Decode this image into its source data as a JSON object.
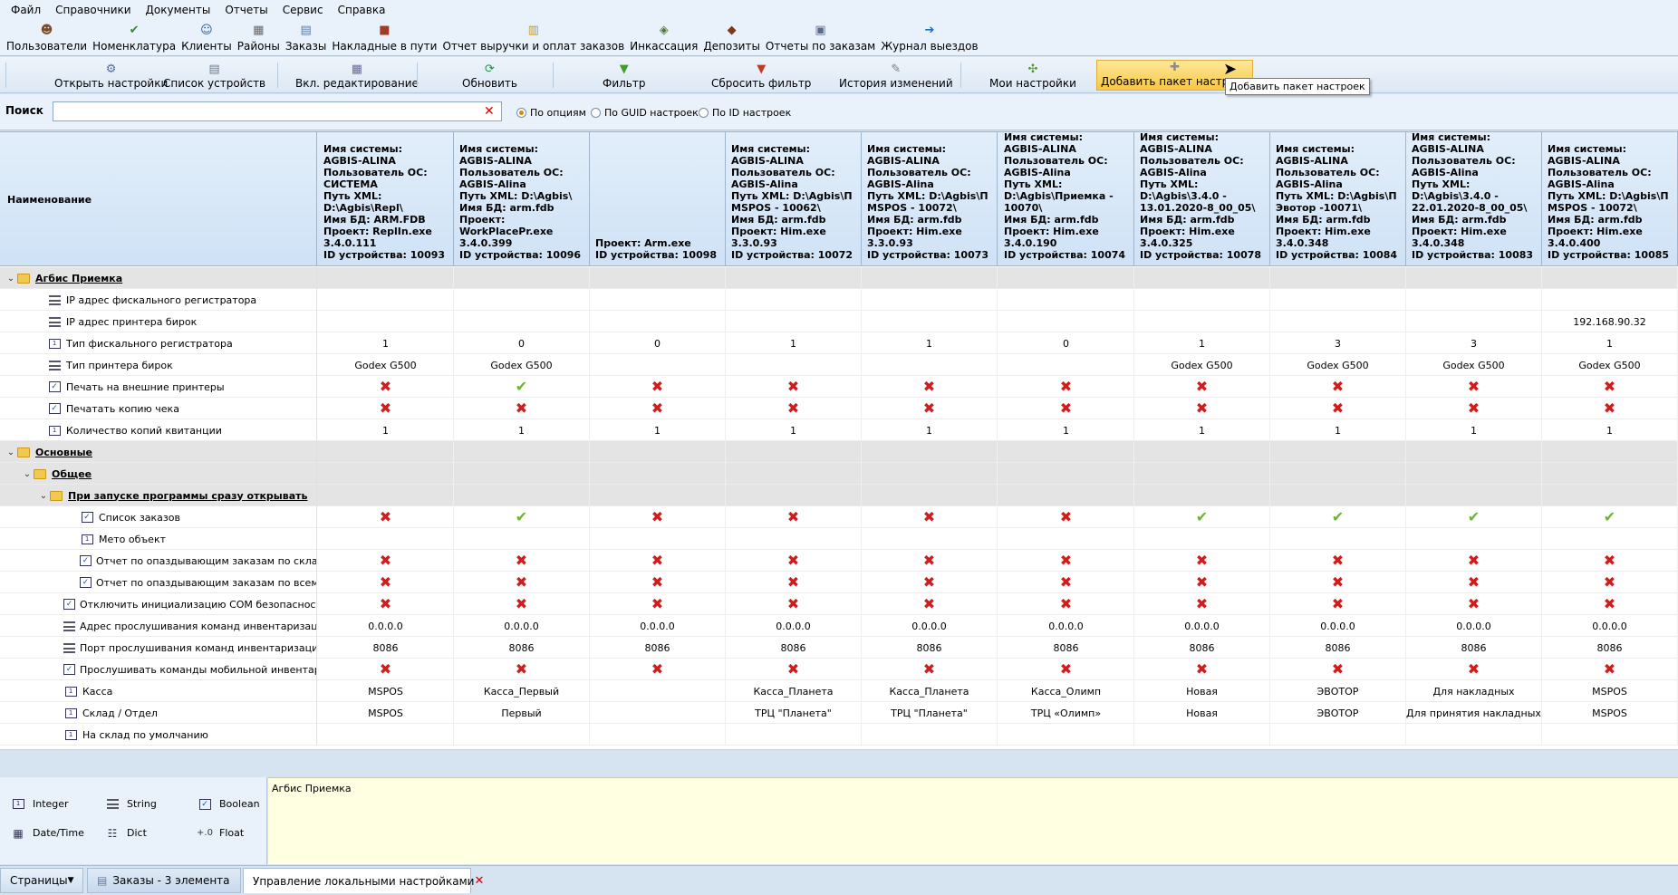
{
  "menu": [
    "Файл",
    "Справочники",
    "Документы",
    "Отчеты",
    "Сервис",
    "Справка"
  ],
  "quickbar": [
    {
      "label": "Пользователи",
      "icon": "users-icon"
    },
    {
      "label": "Номенклатура",
      "icon": "nomenclature-icon"
    },
    {
      "label": "Клиенты",
      "icon": "clients-icon"
    },
    {
      "label": "Районы",
      "icon": "districts-icon"
    },
    {
      "label": "Заказы",
      "icon": "orders-icon"
    },
    {
      "label": "Накладные в пути",
      "icon": "waybills-icon"
    },
    {
      "label": "Отчет выручки и оплат заказов",
      "icon": "revenue-report-icon"
    },
    {
      "label": "Инкассация",
      "icon": "collection-icon"
    },
    {
      "label": "Депозиты",
      "icon": "deposits-icon"
    },
    {
      "label": "Отчеты по заказам",
      "icon": "order-reports-icon"
    },
    {
      "label": "Журнал выездов",
      "icon": "trips-log-icon"
    }
  ],
  "toolbar": [
    {
      "label": "Открыть настройки",
      "icon": "open-settings-icon"
    },
    {
      "label": "Список устройств",
      "icon": "device-list-icon"
    },
    {
      "label": "Вкл. редактирование",
      "icon": "edit-mode-icon"
    },
    {
      "label": "Обновить",
      "icon": "refresh-icon"
    },
    {
      "label": "Фильтр",
      "icon": "filter-icon"
    },
    {
      "label": "Сбросить фильтр",
      "icon": "reset-filter-icon"
    },
    {
      "label": "История изменений",
      "icon": "history-icon"
    },
    {
      "label": "Мои настройки",
      "icon": "my-settings-icon"
    },
    {
      "label": "Добавить пакет настроек",
      "icon": "add-package-icon"
    }
  ],
  "tooltip": "Добавить пакет настроек",
  "search": {
    "label": "Поиск",
    "value": "",
    "placeholder": ""
  },
  "search_modes": [
    {
      "label": "По опциям",
      "selected": true
    },
    {
      "label": "По GUID настроек",
      "selected": false
    },
    {
      "label": "По ID настроек",
      "selected": false
    }
  ],
  "grid": {
    "name_header": "Наименование",
    "columns": [
      "Имя системы:\nAGBIS-ALINA\nПользователь ОС:\nСИСТЕМА\nПуть XML:\nD:\\Agbis\\Repl\\\nИмя БД: ARM.FDB\nПроект: ReplIn.exe\n3.4.0.111\nID устройства: 10093",
      "Имя системы:\nAGBIS-ALINA\nПользователь ОС:\nAGBIS-Alina\nПуть XML: D:\\Agbis\\\nИмя БД: arm.fdb\nПроект:\nWorkPlacePr.exe\n3.4.0.399\nID устройства: 10096",
      "Проект: Arm.exe\nID устройства: 10098",
      "Имя системы:\nAGBIS-ALINA\nПользователь ОС:\nAGBIS-Alina\nПуть XML: D:\\Agbis\\П\nMSPOS - 10062\\\nИмя БД: arm.fdb\nПроект: Him.exe\n3.3.0.93\nID устройства: 10072",
      "Имя системы:\nAGBIS-ALINA\nПользователь ОС:\nAGBIS-Alina\nПуть XML: D:\\Agbis\\П\nMSPOS - 10072\\\nИмя БД: arm.fdb\nПроект: Him.exe\n3.3.0.93\nID устройства: 10073",
      "Имя системы:\nAGBIS-ALINA\nПользователь ОС:\nAGBIS-Alina\nПуть XML:\nD:\\Agbis\\Приемка -\n10070\\\nИмя БД: arm.fdb\nПроект: Him.exe\n3.4.0.190\nID устройства: 10074",
      "Имя системы:\nAGBIS-ALINA\nПользователь ОС:\nAGBIS-Alina\nПуть XML:\nD:\\Agbis\\3.4.0 -\n13.01.2020-8_00_05\\\nИмя БД: arm.fdb\nПроект: Him.exe\n3.4.0.325\nID устройства: 10078",
      "Имя системы:\nAGBIS-ALINA\nПользователь ОС:\nAGBIS-Alina\nПуть XML: D:\\Agbis\\П\nЭвотор -10071\\\nИмя БД: arm.fdb\nПроект: Him.exe\n3.4.0.348\nID устройства: 10084",
      "Имя системы:\nAGBIS-ALINA\nПользователь ОС:\nAGBIS-Alina\nПуть XML:\nD:\\Agbis\\3.4.0 -\n22.01.2020-8_00_05\\\nИмя БД: arm.fdb\nПроект: Him.exe\n3.4.0.348\nID устройства: 10083",
      "Имя системы:\nAGBIS-ALINA\nПользователь ОС:\nAGBIS-Alina\nПуть XML: D:\\Agbis\\П\nMSPOS - 10072\\\nИмя БД: arm.fdb\nПроект: Him.exe\n3.4.0.400\nID устройства: 10085"
    ],
    "rows": [
      {
        "name": "Агбис Приемка",
        "type": "group",
        "level": 0,
        "values": []
      },
      {
        "name": "IP адрес фискального регистратора",
        "type": "string",
        "level": 1,
        "values": [
          "",
          "",
          "",
          "",
          "",
          "",
          "",
          "",
          "",
          ""
        ]
      },
      {
        "name": "IP адрес принтера бирок",
        "type": "string",
        "level": 1,
        "values": [
          "",
          "",
          "",
          "",
          "",
          "",
          "",
          "",
          "",
          "192.168.90.32"
        ]
      },
      {
        "name": "Тип фискального регистратора",
        "type": "int",
        "level": 1,
        "values": [
          "1",
          "0",
          "0",
          "1",
          "1",
          "0",
          "1",
          "3",
          "3",
          "1"
        ]
      },
      {
        "name": "Тип принтера бирок",
        "type": "string",
        "level": 1,
        "values": [
          "Godex G500",
          "Godex G500",
          "",
          "",
          "",
          "",
          "Godex G500",
          "Godex G500",
          "Godex G500",
          "Godex G500"
        ]
      },
      {
        "name": "Печать на внешние принтеры",
        "type": "bool",
        "level": 1,
        "values": [
          "x",
          "v",
          "x",
          "x",
          "x",
          "x",
          "x",
          "x",
          "x",
          "x"
        ]
      },
      {
        "name": "Печатать копию чека",
        "type": "bool",
        "level": 1,
        "values": [
          "x",
          "x",
          "x",
          "x",
          "x",
          "x",
          "x",
          "x",
          "x",
          "x"
        ]
      },
      {
        "name": "Количество копий квитанции",
        "type": "int",
        "level": 1,
        "values": [
          "1",
          "1",
          "1",
          "1",
          "1",
          "1",
          "1",
          "1",
          "1",
          "1"
        ]
      },
      {
        "name": "Основные",
        "type": "group",
        "level": 0,
        "values": []
      },
      {
        "name": "Общее",
        "type": "group",
        "level": 1,
        "values": []
      },
      {
        "name": "При запуске программы сразу открывать",
        "type": "group",
        "level": 2,
        "values": []
      },
      {
        "name": "Список заказов",
        "type": "bool",
        "level": 3,
        "values": [
          "x",
          "v",
          "x",
          "x",
          "x",
          "x",
          "v",
          "v",
          "v",
          "v"
        ]
      },
      {
        "name": "Мето объект",
        "type": "int",
        "level": 3,
        "values": [
          "",
          "",
          "",
          "",
          "",
          "",
          "",
          "",
          "",
          ""
        ]
      },
      {
        "name": "Отчет по опаздывающим заказам по складу",
        "type": "bool",
        "level": 3,
        "values": [
          "x",
          "x",
          "x",
          "x",
          "x",
          "x",
          "x",
          "x",
          "x",
          "x"
        ]
      },
      {
        "name": "Отчет по опаздывающим заказам по всем скл...",
        "type": "bool",
        "level": 3,
        "values": [
          "x",
          "x",
          "x",
          "x",
          "x",
          "x",
          "x",
          "x",
          "x",
          "x"
        ]
      },
      {
        "name": "Отключить инициализацию COM безопасности",
        "type": "bool",
        "level": 2,
        "values": [
          "x",
          "x",
          "x",
          "x",
          "x",
          "x",
          "x",
          "x",
          "x",
          "x"
        ]
      },
      {
        "name": "Адрес прослушивания команд инвентаризации",
        "type": "string",
        "level": 2,
        "values": [
          "0.0.0.0",
          "0.0.0.0",
          "0.0.0.0",
          "0.0.0.0",
          "0.0.0.0",
          "0.0.0.0",
          "0.0.0.0",
          "0.0.0.0",
          "0.0.0.0",
          "0.0.0.0"
        ]
      },
      {
        "name": "Порт прослушивания команд инвентаризации",
        "type": "string",
        "level": 2,
        "values": [
          "8086",
          "8086",
          "8086",
          "8086",
          "8086",
          "8086",
          "8086",
          "8086",
          "8086",
          "8086"
        ]
      },
      {
        "name": "Прослушивать команды мобильной инвентаризации",
        "type": "bool",
        "level": 2,
        "values": [
          "x",
          "x",
          "x",
          "x",
          "x",
          "x",
          "x",
          "x",
          "x",
          "x"
        ]
      },
      {
        "name": "Касса",
        "type": "int",
        "level": 2,
        "values": [
          "MSPOS",
          "Касса_Первый",
          "",
          "Касса_Планета",
          "Касса_Планета",
          "Касса_Олимп",
          "Новая",
          "ЭВОТОР",
          "Для накладных",
          "MSPOS"
        ]
      },
      {
        "name": "Склад / Отдел",
        "type": "int",
        "level": 2,
        "values": [
          "MSPOS",
          "Первый",
          "",
          "ТРЦ \"Планета\"",
          "ТРЦ \"Планета\"",
          "ТРЦ «Олимп»",
          "Новая",
          "ЭВОТОР",
          "Для принятия накладных",
          "MSPOS"
        ]
      },
      {
        "name": "На склад по умолчанию",
        "type": "int",
        "level": 2,
        "values": [
          "",
          "",
          "",
          "",
          "",
          "",
          "",
          "",
          "",
          ""
        ]
      }
    ]
  },
  "legend": [
    {
      "label": "Integer",
      "icon": "integer-type-icon"
    },
    {
      "label": "String",
      "icon": "string-type-icon"
    },
    {
      "label": "Boolean",
      "icon": "boolean-type-icon"
    },
    {
      "label": "Date/Time",
      "icon": "datetime-type-icon"
    },
    {
      "label": "Dict",
      "icon": "dict-type-icon"
    },
    {
      "label": "Float",
      "icon": "float-type-icon"
    }
  ],
  "description": "Агбис Приемка",
  "tabs": {
    "pages": "Страницы",
    "items": [
      {
        "label": "Заказы - 3 элемента",
        "active": false
      },
      {
        "label": "Управление локальными настройками",
        "active": true
      }
    ]
  },
  "colors": {
    "accent": "#f7c844",
    "false_mark": "#d21b1b",
    "true_mark": "#6db52c",
    "group_row": "#e4e4e4"
  }
}
